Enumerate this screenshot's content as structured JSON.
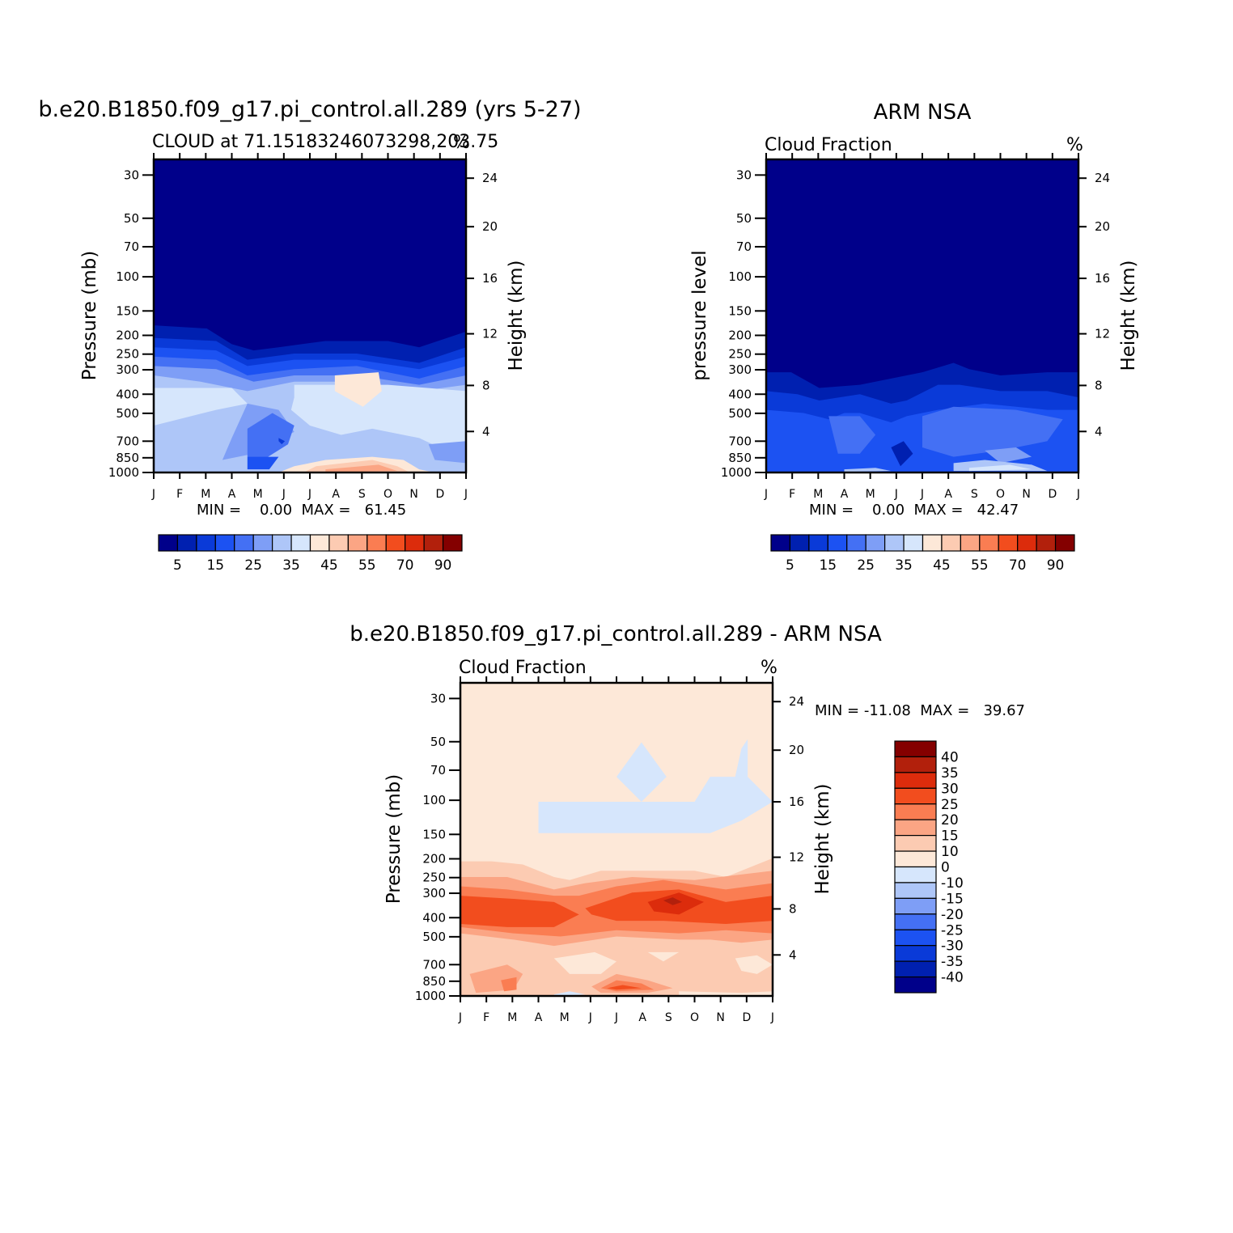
{
  "colors": {
    "abs_palette": [
      "#00008a",
      "#0020b0",
      "#0a3ad8",
      "#1c52f2",
      "#4470f4",
      "#7e9ef6",
      "#aec6f8",
      "#d6e6fc",
      "#fde8d8",
      "#fccbb2",
      "#fba584",
      "#fa7d52",
      "#f24d1e",
      "#dc2c0c",
      "#b2200c",
      "#840000"
    ],
    "diff_palette": [
      "#00008a",
      "#0020b0",
      "#0a3ad8",
      "#1c52f2",
      "#4470f4",
      "#7e9ef6",
      "#aec6f8",
      "#d6e6fc",
      "#fde8d8",
      "#fccbb2",
      "#fba584",
      "#fa7d52",
      "#f24d1e",
      "#dc2c0c",
      "#b2200c",
      "#840000"
    ]
  },
  "chart_data": [
    {
      "id": "model",
      "type": "heatmap",
      "title": "b.e20.B1850.f09_g17.pi_control.all.289 (yrs 5-27)",
      "subtitle_left": "CLOUD at 71.15183246073298,203.75",
      "subtitle_right": "%",
      "ylabel": "Pressure (mb)",
      "ylabel_right": "Height (km)",
      "x_ticks": [
        "J",
        "F",
        "M",
        "A",
        "M",
        "J",
        "J",
        "A",
        "S",
        "O",
        "N",
        "D",
        "J"
      ],
      "y_ticks": [
        "30",
        "50",
        "70",
        "100",
        "150",
        "200",
        "250",
        "300",
        "400",
        "500",
        "700",
        "850",
        "1000"
      ],
      "y_right_ticks": [
        "24",
        "20",
        "16",
        "12",
        "8",
        "4"
      ],
      "stats": "MIN =    0.00  MAX =   61.45",
      "min": 0.0,
      "max": 61.45,
      "colorbar_labels": [
        "5",
        "15",
        "25",
        "35",
        "45",
        "55",
        "70",
        "90"
      ]
    },
    {
      "id": "obs",
      "type": "heatmap",
      "title": "ARM NSA",
      "subtitle_left": "Cloud Fraction",
      "subtitle_right": "%",
      "ylabel": "pressure level",
      "ylabel_right": "Height (km)",
      "x_ticks": [
        "J",
        "F",
        "M",
        "A",
        "M",
        "J",
        "J",
        "A",
        "S",
        "O",
        "N",
        "D",
        "J"
      ],
      "y_ticks": [
        "30",
        "50",
        "70",
        "100",
        "150",
        "200",
        "250",
        "300",
        "400",
        "500",
        "700",
        "850",
        "1000"
      ],
      "y_right_ticks": [
        "24",
        "20",
        "16",
        "12",
        "8",
        "4"
      ],
      "stats": "MIN =    0.00  MAX =   42.47",
      "min": 0.0,
      "max": 42.47,
      "colorbar_labels": [
        "5",
        "15",
        "25",
        "35",
        "45",
        "55",
        "70",
        "90"
      ]
    },
    {
      "id": "diff",
      "type": "heatmap",
      "title": "b.e20.B1850.f09_g17.pi_control.all.289 - ARM NSA",
      "subtitle_left": "Cloud Fraction",
      "subtitle_right": "%",
      "ylabel": "Pressure (mb)",
      "ylabel_right": "Height (km)",
      "x_ticks": [
        "J",
        "F",
        "M",
        "A",
        "M",
        "J",
        "J",
        "A",
        "S",
        "O",
        "N",
        "D",
        "J"
      ],
      "y_ticks": [
        "30",
        "50",
        "70",
        "100",
        "150",
        "200",
        "250",
        "300",
        "400",
        "500",
        "700",
        "850",
        "1000"
      ],
      "y_right_ticks": [
        "24",
        "20",
        "16",
        "12",
        "8",
        "4"
      ],
      "stats": "MIN = -11.08  MAX =   39.67",
      "min": -11.08,
      "max": 39.67,
      "colorbar_labels": [
        "40",
        "35",
        "30",
        "25",
        "20",
        "15",
        "10",
        "0",
        "-10",
        "-15",
        "-20",
        "-25",
        "-30",
        "-35",
        "-40"
      ]
    }
  ]
}
